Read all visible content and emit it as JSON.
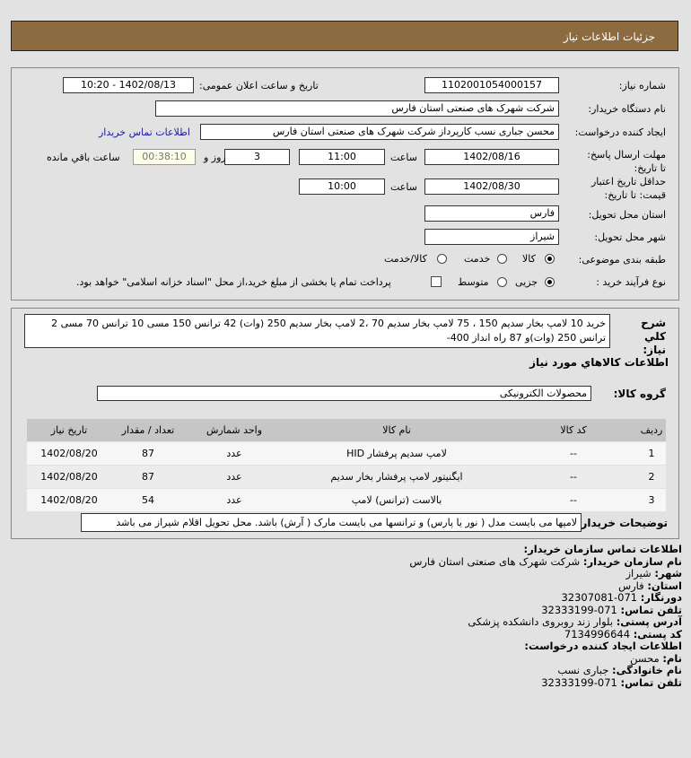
{
  "header": {
    "title": "جزئیات اطلاعات نیاز"
  },
  "form": {
    "need_number_label": "شماره نیاز:",
    "need_number": "1102001054000157",
    "announce_label": "تاریخ و ساعت اعلان عمومی:",
    "announce_value": "1402/08/13 - 10:20",
    "buyer_org_label": "نام دستگاه خریدار:",
    "buyer_org": "شرکت شهرک های صنعتی استان فارس",
    "creator_label": "ایجاد کننده درخواست:",
    "creator": "محسن  جباری نسب کارپرداز شرکت شهرک های صنعتی استان فارس",
    "buyer_contact_link": "اطلاعات تماس خریدار",
    "deadline_label": "مهلت ارسال پاسخ: تا تاریخ:",
    "deadline_date": "1402/08/16",
    "time_label": "ساعت",
    "deadline_time": "11:00",
    "days": "3",
    "days_label": "روز و",
    "remaining": "00:38:10",
    "remaining_label": "ساعت باقي مانده",
    "validity_label": "حداقل تاریخ اعتبار قیمت: تا تاریخ:",
    "validity_date": "1402/08/30",
    "validity_time": "10:00",
    "province_label": "استان محل تحویل:",
    "province": "فارس",
    "city_label": "شهر محل تحویل:",
    "city": "شیراز",
    "category_label": "طبقه بندی موضوعی:",
    "category_options": [
      "کالا",
      "خدمت",
      "کالا/خدمت"
    ],
    "category_selected": "کالا",
    "process_label": "نوع فرآیند خرید :",
    "process_options": [
      "جزیی",
      "متوسط"
    ],
    "process_selected": "جزیی",
    "payment_note": "پرداخت تمام یا بخشی از مبلغ خرید،از محل \"اسناد خزانه اسلامی\" خواهد بود.",
    "payment_checked": false
  },
  "details": {
    "desc_label": "شرح کلي نیاز:",
    "desc": "خرید 10 لامپ بخار سدیم 150 ، 75 لامپ بخار سدیم 70 ،2 لامپ بخار سدیم 250 (وات) 42 ترانس 150 مسی 10 ترانس 70 مسی 2 ترانس 250 (وات)و 87 راه انداز 400-",
    "goods_title": "اطلاعات کالاهاي مورد نیاز",
    "group_label": "گروه کالا:",
    "group": "محصولات الکترونیکی",
    "table": {
      "headers": [
        "ردیف",
        "کد کالا",
        "نام کالا",
        "واحد شمارش",
        "تعداد / مقدار",
        "تاریخ نیاز"
      ],
      "rows": [
        [
          "1",
          "--",
          "لامپ سدیم پرفشار HID",
          "عدد",
          "87",
          "1402/08/20"
        ],
        [
          "2",
          "--",
          "ایگنیتور لامپ پرفشار بخار سدیم",
          "عدد",
          "87",
          "1402/08/20"
        ],
        [
          "3",
          "--",
          "بالاست (ترانس) لامپ",
          "عدد",
          "54",
          "1402/08/20"
        ]
      ]
    },
    "notes_label": "توضیحات خریدار:",
    "notes": "لامپها می بایست مدل ( نور یا پارس) و ترانسها می بایست مارک ( آرش) باشد. محل تحویل اقلام شیراز می باشد"
  },
  "contact": {
    "title": "اطلاعات تماس سازمان خریدار:",
    "org_label": "نام سازمان خریدار:",
    "org": "شرکت شهرک های صنعتی استان فارس",
    "city_label": "شهر:",
    "city": "شیراز",
    "province_label": "استان:",
    "province": "فارس",
    "fax_label": "دورنگار:",
    "fax": "071-32307081",
    "phone_label": "تلفن تماس:",
    "phone": "071-32333199",
    "address_label": "آدرس پستی:",
    "address": "بلوار زند روبروی دانشکده پزشکی",
    "postal_label": "کد پستی:",
    "postal": "7134996644",
    "creator_title": "اطلاعات ایجاد کننده درخواست:",
    "name_label": "نام:",
    "name": "محسن",
    "family_label": "نام خانوادگی:",
    "family": "جباری نسب",
    "creator_phone_label": "تلفن تماس:",
    "creator_phone": "071-32333199"
  }
}
